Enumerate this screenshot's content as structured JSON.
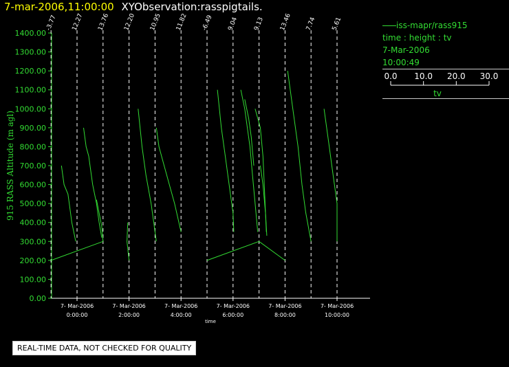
{
  "header": {
    "timestamp": "7-mar-2006,11:00:00",
    "name": "XYObservation:rasspigtails."
  },
  "legend": {
    "series_label": "iss-mapr/rass915",
    "axes_desc": "time : height : tv",
    "date": "7-Mar-2006",
    "time": "10:00:49",
    "scale_ticks": [
      "0.0",
      "10.0",
      "20.0",
      "30.0"
    ],
    "scale_label": "tv"
  },
  "note": "REAL-TIME DATA, NOT CHECKED FOR QUALITY",
  "colors": {
    "series": "#33dd33",
    "axis": "#33dd33",
    "dashed": "#ffffff",
    "title": "#ffff00"
  },
  "chart_data": {
    "type": "line",
    "xlabel": "time",
    "ylabel": "915 RASS Altitude (m agl)",
    "ylim": [
      0,
      1400
    ],
    "yticks": [
      0,
      100,
      200,
      300,
      400,
      500,
      600,
      700,
      800,
      900,
      1000,
      1100,
      1200,
      1300,
      1400
    ],
    "ytick_labels": [
      "0.00",
      "100.00",
      "200.00",
      "300.00",
      "400.00",
      "500.00",
      "600.00",
      "700.00",
      "800.00",
      "900.00",
      "1000.00",
      "1100.00",
      "1200.00",
      "1300.00",
      "1400.00"
    ],
    "xlim_hours": [
      -1.0,
      11.5
    ],
    "xticks": [
      {
        "hour": 0,
        "date": "7- Mar-2006",
        "time": "0:00:00"
      },
      {
        "hour": 2,
        "date": "7- Mar-2006",
        "time": "2:00:00"
      },
      {
        "hour": 4,
        "date": "7- Mar-2006",
        "time": "4:00:00"
      },
      {
        "hour": 6,
        "date": "7- Mar-2006",
        "time": "6:00:00"
      },
      {
        "hour": 8,
        "date": "7- Mar-2006",
        "time": "8:00:00"
      },
      {
        "hour": 10,
        "date": "7- Mar-2006",
        "time": "10:00:00"
      }
    ],
    "profile_markers": [
      {
        "hour": -1.0,
        "label": "-3.77"
      },
      {
        "hour": 0.0,
        "label": "12.27"
      },
      {
        "hour": 1.0,
        "label": "13.76"
      },
      {
        "hour": 2.0,
        "label": "12.20"
      },
      {
        "hour": 3.0,
        "label": "10.95"
      },
      {
        "hour": 4.0,
        "label": "11.82"
      },
      {
        "hour": 5.0,
        "label": "-6.49"
      },
      {
        "hour": 6.0,
        "label": "9.04"
      },
      {
        "hour": 7.0,
        "label": "9.13"
      },
      {
        "hour": 8.0,
        "label": "13.46"
      },
      {
        "hour": 9.0,
        "label": "7.74"
      },
      {
        "hour": 10.0,
        "label": "5.61"
      }
    ],
    "series": [
      {
        "points": [
          [
            -0.6,
            700
          ],
          [
            -0.5,
            600
          ],
          [
            -0.35,
            550
          ],
          [
            -0.3,
            500
          ],
          [
            -0.2,
            400
          ],
          [
            -0.05,
            300
          ]
        ]
      },
      {
        "points": [
          [
            0.25,
            900
          ],
          [
            0.35,
            800
          ],
          [
            0.45,
            750
          ],
          [
            0.5,
            700
          ],
          [
            0.6,
            600
          ],
          [
            0.75,
            500
          ],
          [
            0.85,
            400
          ],
          [
            0.95,
            320
          ]
        ]
      },
      {
        "points": [
          [
            0.75,
            520
          ],
          [
            0.85,
            450
          ],
          [
            0.95,
            380
          ],
          [
            1.0,
            300
          ]
        ]
      },
      {
        "points": [
          [
            -1.0,
            200
          ],
          [
            1.0,
            300
          ]
        ]
      },
      {
        "points": [
          [
            1.95,
            400
          ],
          [
            1.92,
            300
          ],
          [
            2.0,
            200
          ]
        ]
      },
      {
        "points": [
          [
            2.35,
            1000
          ],
          [
            2.5,
            800
          ],
          [
            2.65,
            650
          ],
          [
            2.85,
            500
          ],
          [
            3.05,
            300
          ]
        ]
      },
      {
        "points": [
          [
            3.05,
            900
          ],
          [
            3.15,
            800
          ],
          [
            3.35,
            700
          ],
          [
            3.55,
            600
          ],
          [
            3.75,
            500
          ],
          [
            4.0,
            350
          ]
        ]
      },
      {
        "points": [
          [
            5.4,
            1100
          ],
          [
            5.55,
            900
          ],
          [
            5.7,
            750
          ],
          [
            5.85,
            600
          ],
          [
            6.0,
            450
          ],
          [
            6.03,
            350
          ]
        ]
      },
      {
        "points": [
          [
            6.3,
            1100
          ],
          [
            6.45,
            1000
          ],
          [
            6.55,
            900
          ],
          [
            6.65,
            800
          ],
          [
            6.75,
            650
          ],
          [
            6.85,
            500
          ],
          [
            6.95,
            350
          ]
        ]
      },
      {
        "points": [
          [
            6.45,
            1050
          ],
          [
            6.6,
            950
          ],
          [
            6.7,
            850
          ],
          [
            6.8,
            700
          ]
        ]
      },
      {
        "points": [
          [
            6.85,
            1000
          ],
          [
            7.05,
            900
          ],
          [
            7.15,
            750
          ],
          [
            7.2,
            600
          ],
          [
            7.25,
            450
          ],
          [
            7.28,
            350
          ]
        ]
      },
      {
        "points": [
          [
            7.05,
            700
          ],
          [
            7.15,
            600
          ],
          [
            7.25,
            450
          ],
          [
            7.3,
            330
          ]
        ]
      },
      {
        "points": [
          [
            5.0,
            200
          ],
          [
            7.0,
            300
          ],
          [
            8.0,
            200
          ]
        ]
      },
      {
        "points": [
          [
            8.1,
            1200
          ],
          [
            8.3,
            1000
          ],
          [
            8.5,
            800
          ],
          [
            8.65,
            600
          ],
          [
            8.8,
            450
          ],
          [
            9.0,
            300
          ]
        ]
      },
      {
        "points": [
          [
            9.5,
            1000
          ],
          [
            9.7,
            800
          ],
          [
            9.8,
            700
          ],
          [
            9.9,
            600
          ],
          [
            10.0,
            500
          ],
          [
            10.0,
            300
          ]
        ]
      }
    ]
  }
}
